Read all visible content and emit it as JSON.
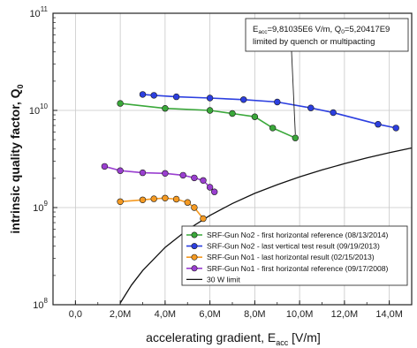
{
  "chart_data": {
    "type": "scatter",
    "title": "",
    "xlabel": "accelerating gradient, E",
    "xlabel_sub": "acc",
    "xlabel_unit": " [V/m]",
    "ylabel": "intrinsic quality factor, Q",
    "ylabel_sub": "0",
    "xlim": [
      -1000000,
      15000000
    ],
    "ylim": [
      100000000,
      100000000000
    ],
    "yscale": "log",
    "grid": true,
    "legend_position": "bottom-right",
    "x_ticks": [
      {
        "value": 0,
        "label": "0,0"
      },
      {
        "value": 2000000,
        "label": "2,0M"
      },
      {
        "value": 4000000,
        "label": "4,0M"
      },
      {
        "value": 6000000,
        "label": "6,0M"
      },
      {
        "value": 8000000,
        "label": "8,0M"
      },
      {
        "value": 10000000,
        "label": "10,0M"
      },
      {
        "value": 12000000,
        "label": "12,0M"
      },
      {
        "value": 14000000,
        "label": "14,0M"
      }
    ],
    "y_ticks": [
      {
        "value": 100000000,
        "base": "10",
        "exp": "8"
      },
      {
        "value": 1000000000,
        "base": "10",
        "exp": "9"
      },
      {
        "value": 10000000000,
        "base": "10",
        "exp": "10"
      },
      {
        "value": 100000000000,
        "base": "10",
        "exp": "11"
      }
    ],
    "series": [
      {
        "name": "SRF-Gun No2 - first horizontal reference (08/13/2014)",
        "color": "#3aa83a",
        "x": [
          2000000,
          4000000,
          6000000,
          7000000,
          8000000,
          8800000,
          9810350
        ],
        "y": [
          11800000000,
          10500000000,
          10000000000,
          9300000000,
          8600000000,
          6600000000,
          5204170000
        ]
      },
      {
        "name": "SRF-Gun No2 - last vertical test result (09/19/2013)",
        "color": "#2c3fe0",
        "x": [
          3000000,
          3500000,
          4500000,
          6000000,
          7500000,
          9000000,
          10500000,
          11500000,
          13500000,
          14300000
        ],
        "y": [
          14600000000,
          14300000000,
          13800000000,
          13400000000,
          12900000000,
          12200000000,
          10600000000,
          9500000000,
          7200000000,
          6600000000
        ]
      },
      {
        "name": "SRF-Gun No1 - last horizontal result (02/15/2013)",
        "color": "#f59a22",
        "x": [
          2000000,
          3000000,
          3500000,
          4000000,
          4500000,
          5000000,
          5300000,
          5700000
        ],
        "y": [
          1150000000,
          1200000000,
          1230000000,
          1250000000,
          1220000000,
          1130000000,
          1000000000,
          770000000
        ]
      },
      {
        "name": "SRF-Gun No1 - first horizontal reference (09/17/2008)",
        "color": "#9a3fd0",
        "x": [
          1300000,
          2000000,
          3000000,
          4000000,
          4800000,
          5300000,
          5700000,
          6000000,
          6200000
        ],
        "y": [
          2650000000,
          2400000000,
          2280000000,
          2250000000,
          2150000000,
          2020000000,
          1900000000,
          1620000000,
          1450000000
        ]
      }
    ],
    "limit_line": {
      "name": "30 W limit",
      "color": "#111111",
      "x": [
        2000000,
        2500000,
        3000000,
        4000000,
        5000000,
        6000000,
        7000000,
        8000000,
        9000000,
        10000000,
        11000000,
        12000000,
        13000000,
        14000000,
        15000000
      ],
      "y": [
        104000000,
        159000000,
        225000000,
        389000000,
        592000000,
        830000000,
        1100000000,
        1400000000,
        1720000000,
        2070000000,
        2440000000,
        2830000000,
        3240000000,
        3670000000,
        4110000000
      ]
    },
    "annotation": {
      "line1_main": "E",
      "line1_sub": "acc",
      "line1_mid": "=9,81035E6 V/m, Q",
      "line1_sub2": "0",
      "line1_end": "=5,20417E9",
      "line2": "limited by quench or multipacting",
      "target_x": 9810350,
      "target_y": 5204170000
    }
  }
}
